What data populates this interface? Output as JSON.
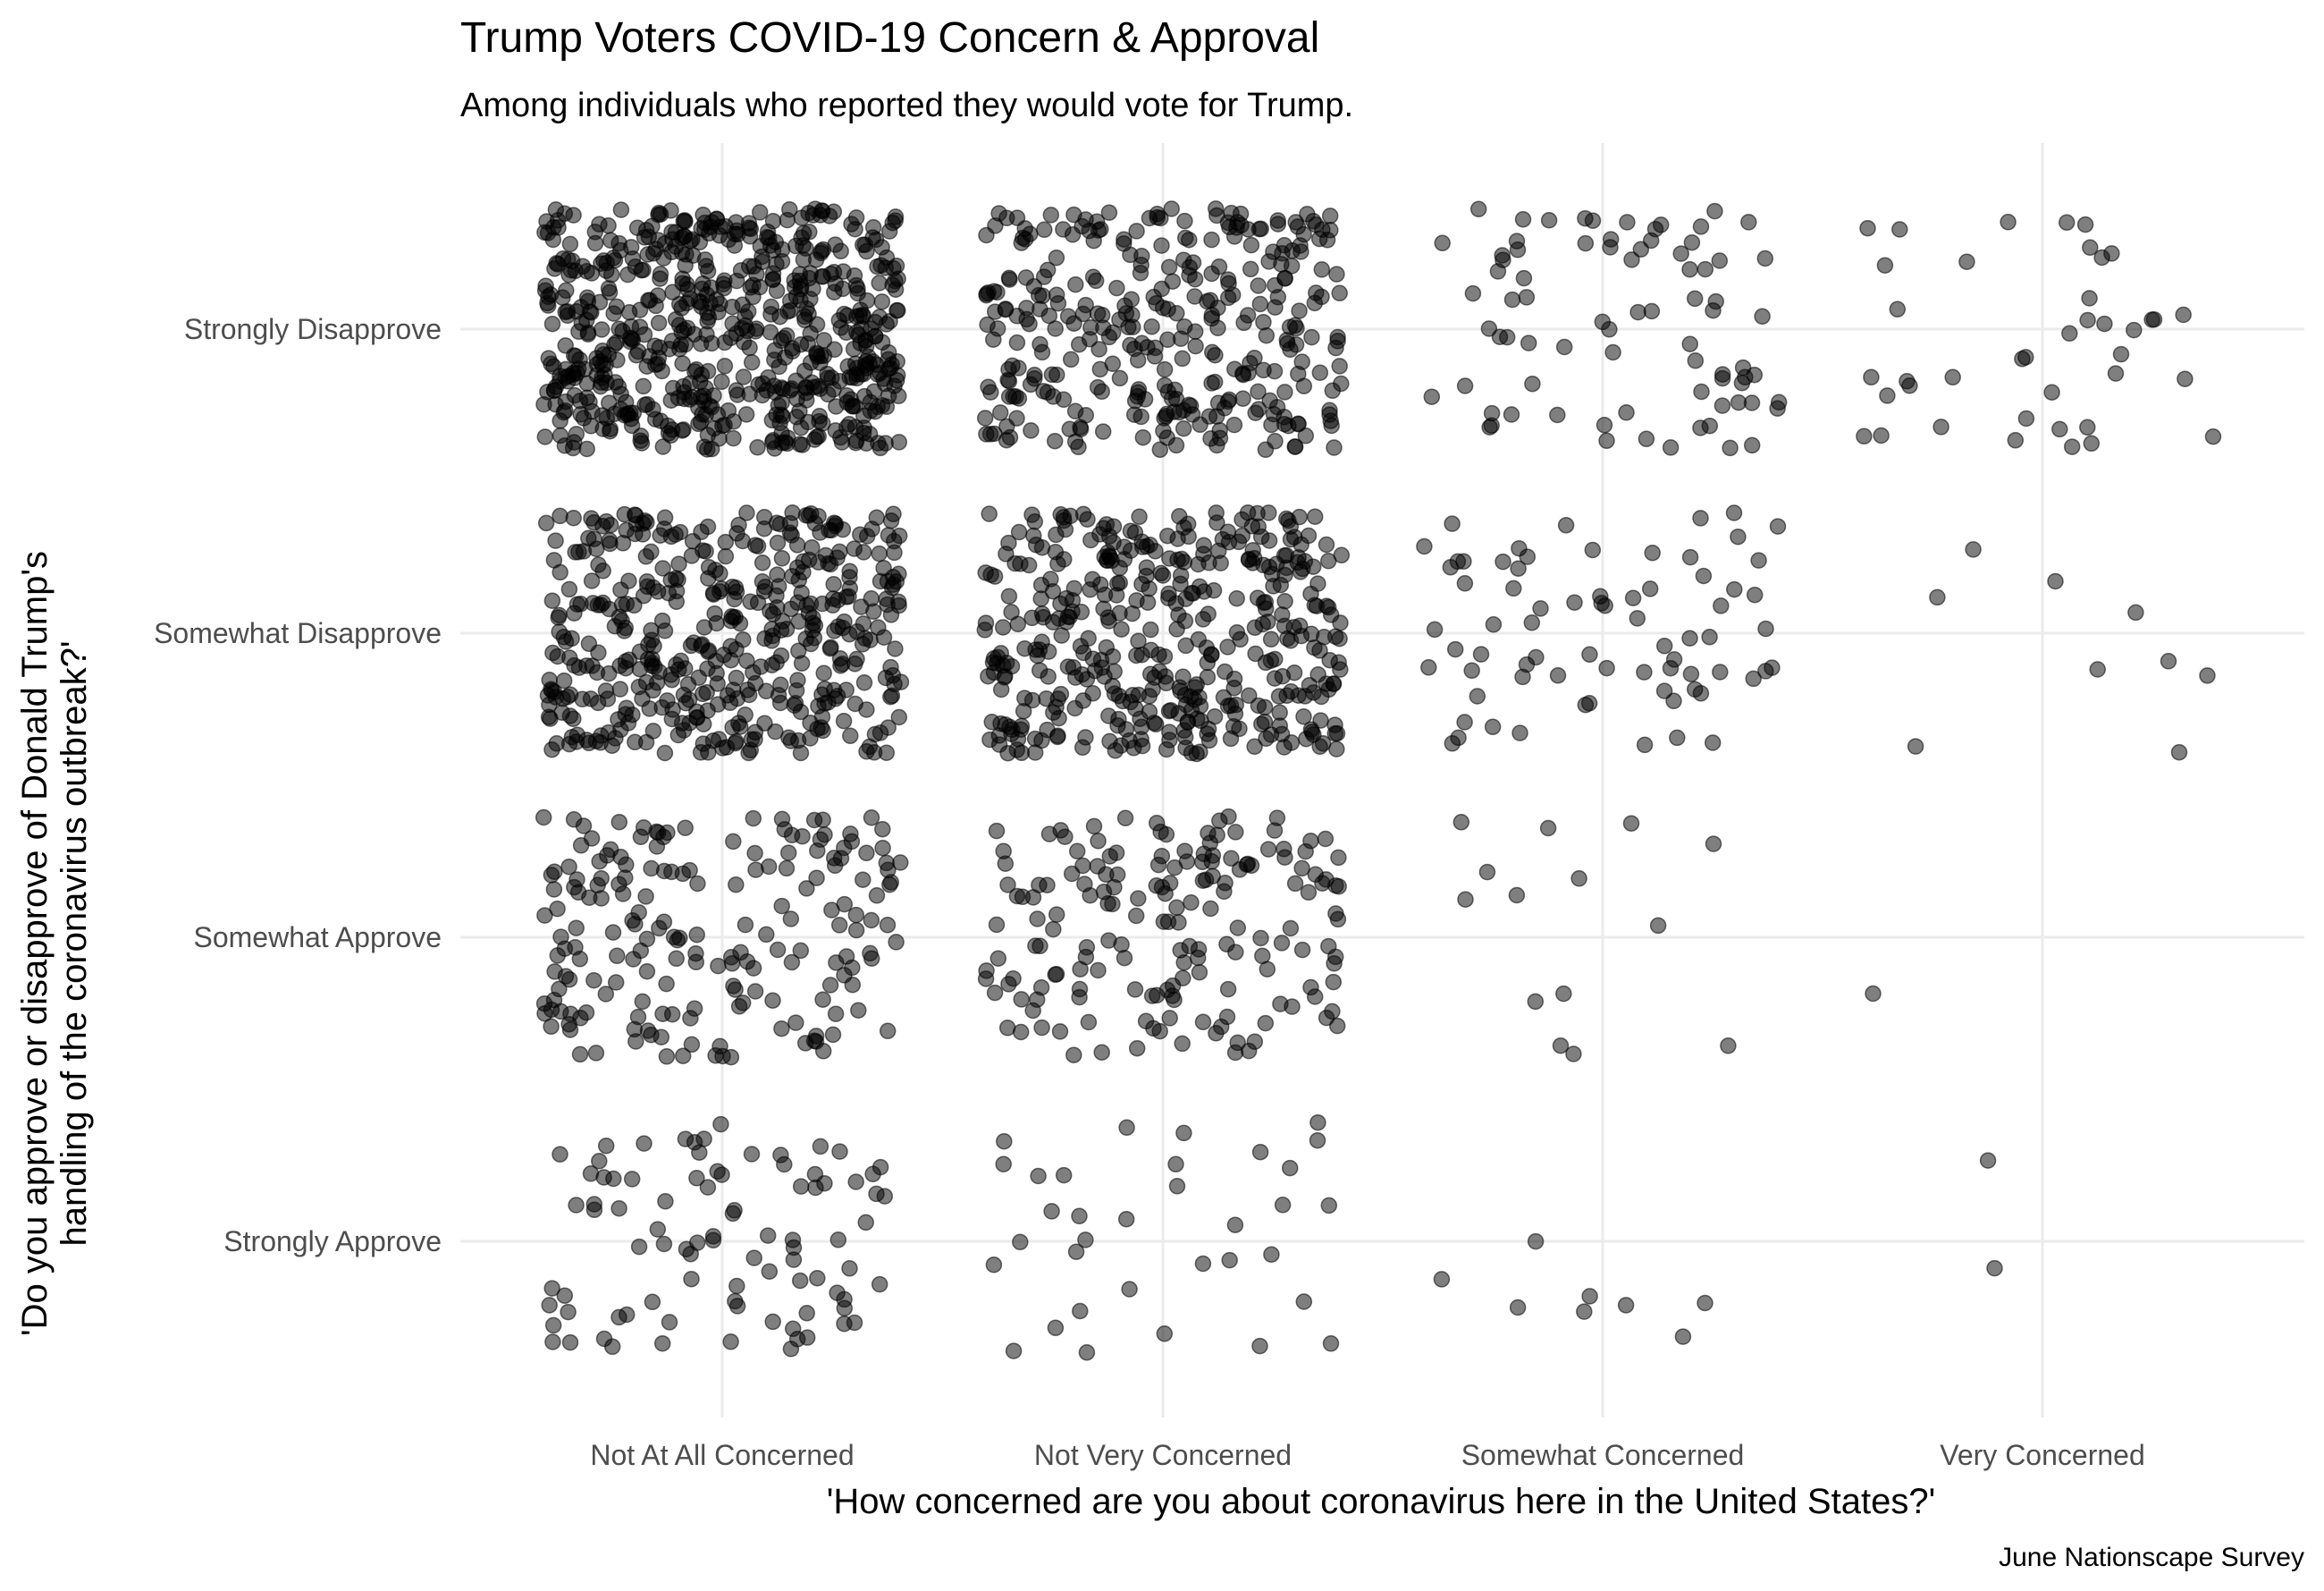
{
  "chart_data": {
    "type": "scatter",
    "jitter": true,
    "title": "Trump Voters COVID-19 Concern & Approval",
    "subtitle": "Among individuals who reported they would vote for Trump.",
    "caption": "June Nationscape Survey",
    "xlabel": "'How concerned are you about coronavirus here in the United States?'",
    "ylabel_lines": [
      "'Do you approve or disapprove of Donald Trump's",
      "handling of the coronavirus outbreak?'"
    ],
    "x_categories": [
      "Not At All Concerned",
      "Not Very Concerned",
      "Somewhat Concerned",
      "Very Concerned"
    ],
    "y_categories": [
      "Strongly Approve",
      "Somewhat Approve",
      "Somewhat Disapprove",
      "Strongly Disapprove"
    ],
    "grid": true,
    "point_color": "#000000",
    "point_alpha": 0.5,
    "counts": [
      [
        88,
        34,
        8,
        2
      ],
      [
        188,
        172,
        14,
        1
      ],
      [
        450,
        420,
        72,
        9
      ],
      [
        640,
        330,
        78,
        40
      ]
    ]
  }
}
